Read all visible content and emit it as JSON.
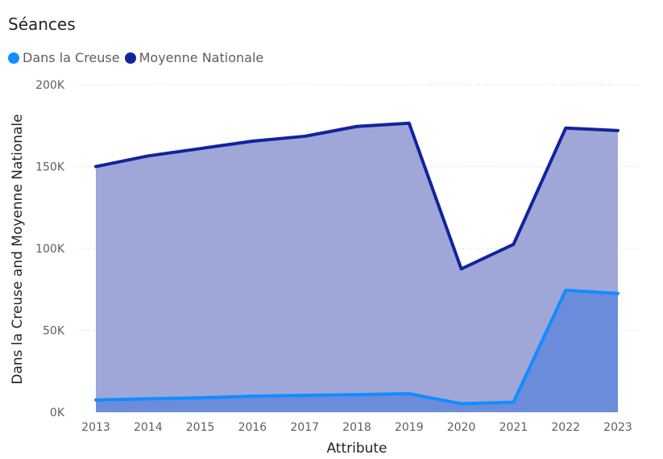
{
  "chart_data": {
    "type": "area",
    "title": "Séances",
    "xlabel": "Attribute",
    "ylabel": "Dans la Creuse and Moyenne Nationale",
    "categories": [
      "2013",
      "2014",
      "2015",
      "2016",
      "2017",
      "2018",
      "2019",
      "2020",
      "2021",
      "2022",
      "2023"
    ],
    "ylim": [
      0,
      200000
    ],
    "yticks": [
      {
        "value": 0,
        "label": "0K"
      },
      {
        "value": 50000,
        "label": "50K"
      },
      {
        "value": 100000,
        "label": "100K"
      },
      {
        "value": 150000,
        "label": "150K"
      },
      {
        "value": 200000,
        "label": "200K"
      }
    ],
    "grid": true,
    "legend_position": "top-left",
    "series": [
      {
        "name": "Dans la Creuse",
        "color": "#118dff",
        "fill": "#6b8bdb",
        "values": [
          7500,
          8200,
          8800,
          9800,
          10300,
          10700,
          11300,
          5200,
          6100,
          74500,
          72500
        ]
      },
      {
        "name": "Moyenne Nationale",
        "color": "#12239e",
        "fill": "#9fa7d8",
        "values": [
          150000,
          156500,
          161000,
          165500,
          168500,
          174500,
          176500,
          87500,
          102500,
          173500,
          172000
        ]
      }
    ]
  }
}
